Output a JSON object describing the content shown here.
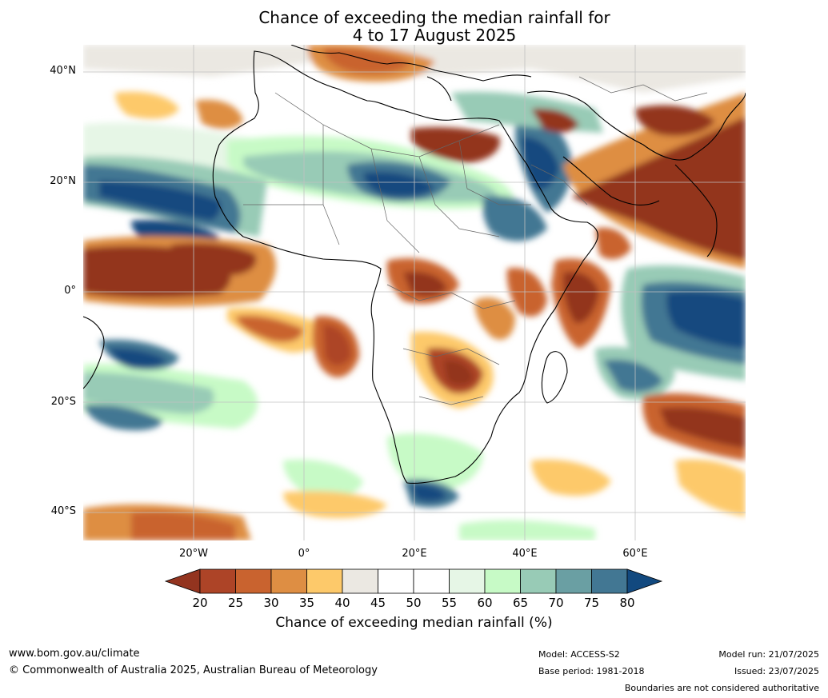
{
  "title": {
    "line1": "Chance of exceeding the median rainfall for",
    "line2": "4 to 17 August 2025"
  },
  "map": {
    "lat_labels": [
      "40°N",
      "20°N",
      "0°",
      "20°S",
      "40°S"
    ],
    "lon_labels": [
      "20°W",
      "0°",
      "20°E",
      "40°E",
      "60°E"
    ],
    "lat_range": [
      -45,
      45
    ],
    "lon_range": [
      -40,
      80
    ]
  },
  "colorbar": {
    "title": "Chance of exceeding median rainfall (%)",
    "ticks": [
      "20",
      "25",
      "30",
      "35",
      "40",
      "45",
      "50",
      "55",
      "60",
      "65",
      "70",
      "75",
      "80"
    ],
    "colors": {
      "below_20": "#93341f",
      "c20_25": "#ad4427",
      "c25_30": "#c9632f",
      "c30_35": "#de8e43",
      "c35_40": "#fdc96a",
      "c40_45": "#ebe8e2",
      "c45_50": "#ffffff",
      "c50_55": "#ffffff",
      "c55_60": "#e6f6e6",
      "c60_65": "#c7fac6",
      "c65_70": "#98cbb6",
      "c70_75": "#6a9fa3",
      "c75_80": "#427793",
      "above_80": "#12497f"
    }
  },
  "footer": {
    "website": "www.bom.gov.au/climate",
    "copyright": "© Commonwealth of Australia 2025, Australian Bureau of Meteorology",
    "model": "Model: ACCESS-S2",
    "base_period": "Base period: 1981-2018",
    "model_run": "Model run: 21/07/2025",
    "issued": "Issued: 23/07/2025",
    "disclaimer": "Boundaries are not considered authoritative"
  }
}
